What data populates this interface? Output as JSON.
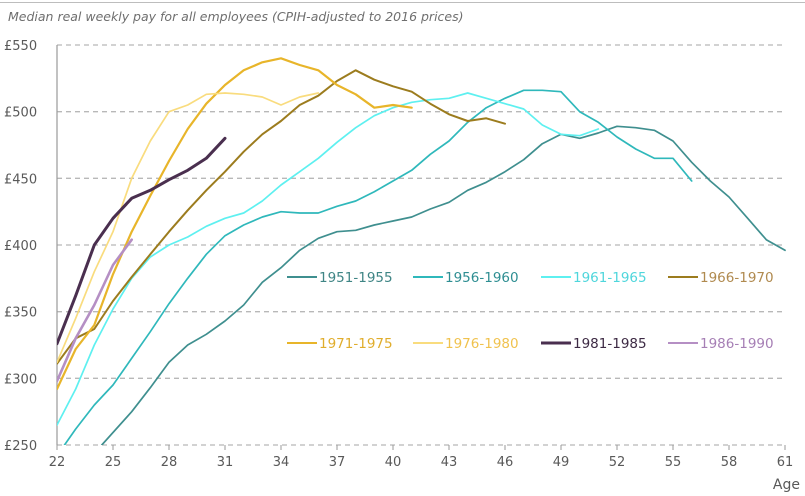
{
  "chart_data": {
    "type": "line",
    "title": "Median real weekly pay for all employees (CPIH-adjusted to 2016 prices)",
    "xlabel": "Age",
    "ylabel": "",
    "xlim": [
      22,
      61
    ],
    "ylim": [
      250,
      550
    ],
    "x_ticks": [
      "22",
      "25",
      "28",
      "31",
      "34",
      "37",
      "40",
      "43",
      "46",
      "49",
      "52",
      "55",
      "58",
      "61"
    ],
    "x_tick_values": [
      22,
      25,
      28,
      31,
      34,
      37,
      40,
      43,
      46,
      49,
      52,
      55,
      58,
      61
    ],
    "y_ticks": [
      "£250",
      "£300",
      "£350",
      "£400",
      "£450",
      "£500",
      "£550"
    ],
    "y_tick_values": [
      250,
      300,
      350,
      400,
      450,
      500,
      550
    ],
    "grid": "horizontal dashed",
    "legend_position": "inside-center-right",
    "series": [
      {
        "name": "1951-1955",
        "color": "#3f8f8f",
        "x": [
          24.4,
          26,
          27,
          28,
          29,
          30,
          31,
          32,
          33,
          34,
          35,
          36,
          37,
          38,
          39,
          40,
          41,
          42,
          43,
          44,
          45,
          46,
          47,
          48,
          49,
          50,
          51,
          52,
          53,
          54,
          55,
          56,
          57,
          58,
          59,
          60,
          61
        ],
        "values": [
          250,
          275,
          293,
          312,
          325,
          333,
          343,
          355,
          372,
          383,
          396,
          405,
          410,
          411,
          415,
          418,
          421,
          427,
          432,
          441,
          447,
          455,
          464,
          476,
          483,
          480,
          484,
          489,
          488,
          486,
          478,
          462,
          448,
          436,
          420,
          404,
          396
        ]
      },
      {
        "name": "1956-1960",
        "color": "#2fb8bb",
        "x": [
          22.4,
          23,
          24,
          25,
          26,
          27,
          28,
          29,
          30,
          31,
          32,
          33,
          34,
          35,
          36,
          37,
          38,
          39,
          40,
          41,
          42,
          43,
          44,
          45,
          46,
          47,
          48,
          49,
          50,
          51,
          52,
          53,
          54,
          55,
          56
        ],
        "values": [
          250,
          262,
          280,
          295,
          315,
          335,
          356,
          375,
          393,
          407,
          415,
          421,
          425,
          424,
          424,
          429,
          433,
          440,
          448,
          456,
          468,
          478,
          492,
          503,
          510,
          516,
          516,
          515,
          500,
          492,
          481,
          472,
          465,
          465,
          448
        ]
      },
      {
        "name": "1961-1965",
        "color": "#5ef0f0",
        "x": [
          22,
          23,
          24,
          25,
          26,
          27,
          28,
          29,
          30,
          31,
          32,
          33,
          34,
          35,
          36,
          37,
          38,
          39,
          40,
          41,
          42,
          43,
          44,
          45,
          46,
          47,
          48,
          49,
          50,
          51
        ],
        "values": [
          265,
          292,
          325,
          352,
          375,
          391,
          400,
          406,
          414,
          420,
          424,
          433,
          445,
          455,
          465,
          477,
          488,
          497,
          503,
          507,
          509,
          510,
          514,
          510,
          506,
          502,
          490,
          483,
          482,
          487
        ]
      },
      {
        "name": "1966-1970",
        "color": "#9c7c1e",
        "x": [
          22,
          23,
          24,
          25,
          26,
          27,
          28,
          29,
          30,
          31,
          32,
          33,
          34,
          35,
          36,
          37,
          38,
          39,
          40,
          41,
          42,
          43,
          44,
          45,
          46
        ],
        "values": [
          311,
          330,
          337,
          358,
          376,
          393,
          410,
          426,
          441,
          455,
          470,
          483,
          493,
          505,
          512,
          523,
          531,
          524,
          519,
          515,
          506,
          498,
          493,
          495,
          491
        ]
      },
      {
        "name": "1971-1975",
        "color": "#e8b52a",
        "x": [
          22,
          23,
          24,
          25,
          26,
          27,
          28,
          29,
          30,
          31,
          32,
          33,
          34,
          35,
          36,
          37,
          38,
          39,
          40,
          41
        ],
        "values": [
          292,
          322,
          340,
          378,
          410,
          437,
          463,
          487,
          506,
          520,
          531,
          537,
          540,
          535,
          531,
          520,
          513,
          503,
          505,
          503
        ]
      },
      {
        "name": "1976-1980",
        "color": "#f9dc7e",
        "x": [
          22,
          23,
          24,
          25,
          26,
          27,
          28,
          29,
          30,
          31,
          32,
          33,
          34,
          35,
          36
        ],
        "values": [
          312,
          345,
          380,
          410,
          450,
          478,
          500,
          505,
          513,
          514,
          513,
          511,
          505,
          511,
          514
        ]
      },
      {
        "name": "1981-1985",
        "color": "#4a2f4f",
        "x": [
          22,
          23,
          24,
          25,
          26,
          27,
          28,
          29,
          30,
          31
        ],
        "values": [
          326,
          362,
          400,
          420,
          435,
          441,
          449,
          456,
          465,
          480
        ]
      },
      {
        "name": "1986-1990",
        "color": "#b58fc4",
        "x": [
          22,
          23,
          24,
          25,
          26
        ],
        "values": [
          298,
          330,
          355,
          385,
          404
        ]
      }
    ],
    "legend_rows": [
      [
        "1951-1955",
        "1956-1960",
        "1961-1965",
        "1966-1970"
      ],
      [
        "1971-1975",
        "1976-1980",
        "1981-1985",
        "1986-1990"
      ]
    ],
    "legend_text_colors": {
      "1951-1955": "#3f8585",
      "1956-1960": "#2e8e92",
      "1961-1965": "#4fd6dc",
      "1966-1970": "#b08a4f",
      "1971-1975": "#e0ad2c",
      "1976-1980": "#f0c24e",
      "1981-1985": "#3d2a44",
      "1986-1990": "#a67fb5"
    }
  }
}
